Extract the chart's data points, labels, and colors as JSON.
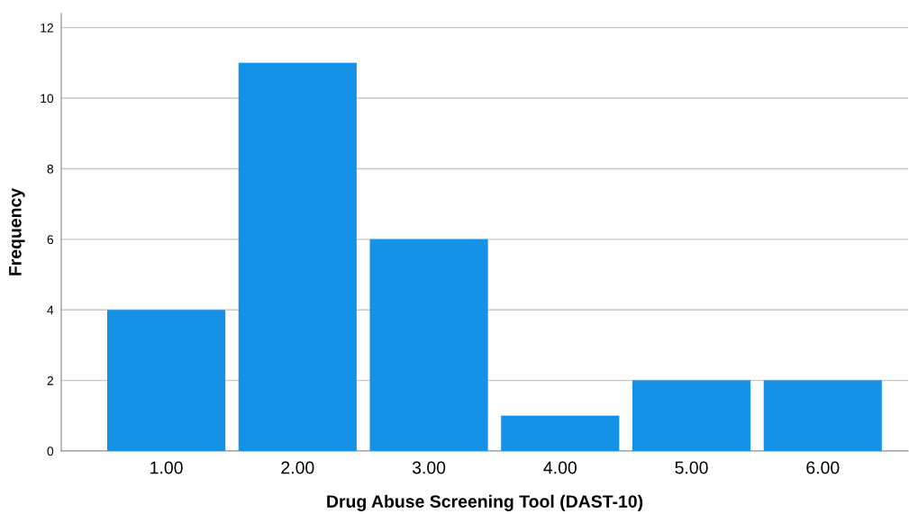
{
  "chart_data": {
    "type": "bar",
    "xlabel": "Drug Abuse Screening Tool (DAST-10)",
    "ylabel": "Frequency",
    "categories": [
      "1.00",
      "2.00",
      "3.00",
      "4.00",
      "5.00",
      "6.00"
    ],
    "values": [
      4,
      11,
      6,
      1,
      2,
      2
    ],
    "color": "#1592e6",
    "ylim": [
      0,
      12.4
    ],
    "yticks": [
      0,
      2,
      4,
      6,
      8,
      10,
      12
    ],
    "grid": "y"
  }
}
